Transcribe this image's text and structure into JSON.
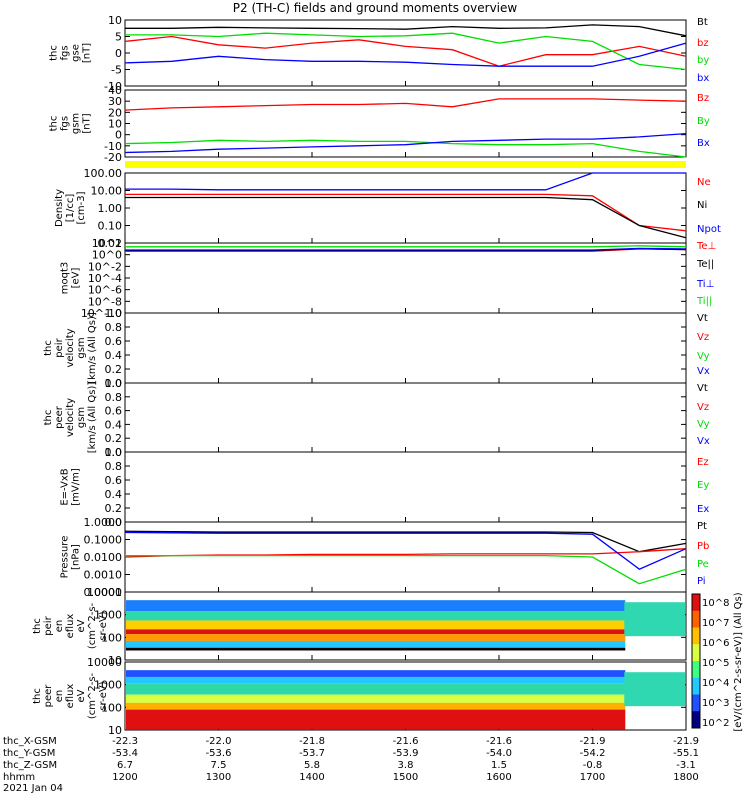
{
  "title": "P2 (TH-C) fields and ground moments overview",
  "colors": {
    "black": "#000000",
    "red": "#ff0000",
    "green": "#00dd00",
    "blue": "#0000ff",
    "yellow": "#ffff00"
  },
  "chart_data": [
    {
      "type": "line",
      "ylabel": [
        "thc",
        "fgs",
        "gse",
        "[nT]"
      ],
      "yticks": [
        "10",
        "5",
        "0",
        "-5",
        "-10"
      ],
      "ylim": [
        -10,
        10
      ],
      "series": [
        {
          "name": "Bt",
          "color": "#000000",
          "values": [
            7.5,
            7.5,
            7.8,
            7.6,
            7.5,
            7.4,
            7.2,
            8.0,
            7.5,
            7.6,
            8.5,
            8.0,
            5.2
          ]
        },
        {
          "name": "bz",
          "color": "#ff0000",
          "values": [
            3.5,
            5.0,
            2.5,
            1.5,
            3.0,
            4.0,
            2.0,
            1.0,
            -4.0,
            -0.5,
            -0.5,
            2.0,
            -1.0
          ]
        },
        {
          "name": "by",
          "color": "#00dd00",
          "values": [
            5.5,
            5.5,
            5.0,
            6.0,
            5.5,
            5.0,
            5.2,
            6.0,
            3.0,
            5.0,
            3.5,
            -3.5,
            -5.0
          ]
        },
        {
          "name": "bx",
          "color": "#0000ff",
          "values": [
            -3.0,
            -2.5,
            -1.0,
            -2.0,
            -2.5,
            -2.5,
            -2.8,
            -3.5,
            -4.0,
            -4.0,
            -4.0,
            -1.0,
            3.0
          ]
        }
      ]
    },
    {
      "type": "line",
      "ylabel": [
        "thc",
        "fgs",
        "gsm",
        "[nT]"
      ],
      "yticks": [
        "40",
        "30",
        "20",
        "10",
        "0",
        "-10",
        "-20"
      ],
      "ylim": [
        -20,
        40
      ],
      "series": [
        {
          "name": "Bz",
          "color": "#ff0000",
          "values": [
            22,
            24,
            25,
            26,
            27,
            27,
            28,
            25,
            32,
            32,
            32,
            31,
            30
          ]
        },
        {
          "name": "By",
          "color": "#00dd00",
          "values": [
            -8,
            -7,
            -5,
            -6,
            -5,
            -6,
            -6,
            -8,
            -9,
            -9,
            -8,
            -15,
            -20
          ]
        },
        {
          "name": "Bx",
          "color": "#0000ff",
          "values": [
            -16,
            -15,
            -13,
            -12,
            -11,
            -10,
            -9,
            -6,
            -5,
            -4,
            -4,
            -2,
            1
          ]
        }
      ]
    },
    {
      "type": "line",
      "ylabel": [
        "Density",
        "[1/cc]",
        "[cm-3]"
      ],
      "yticks": [
        "100.00",
        "10.00",
        "1.00",
        "0.10",
        "0.01"
      ],
      "yscale": "log",
      "ylim": [
        0.01,
        100
      ],
      "series": [
        {
          "name": "Ne",
          "color": "#ff0000",
          "values": [
            6,
            6,
            6,
            6,
            6,
            6,
            6,
            6,
            6,
            6,
            5,
            0.1,
            0.05
          ]
        },
        {
          "name": "Ni",
          "color": "#000000",
          "values": [
            4,
            4,
            4,
            4,
            4,
            4,
            4,
            4,
            4,
            4,
            3,
            0.1,
            0.02
          ]
        },
        {
          "name": "Npot",
          "color": "#0000ff",
          "values": [
            12,
            12,
            11,
            11,
            11,
            11,
            11,
            11,
            11,
            11,
            100,
            100,
            100
          ]
        }
      ]
    },
    {
      "type": "line",
      "ylabel": [
        "moqt3",
        "[eV]"
      ],
      "yticks": [
        "10^2",
        "10^0",
        "10^-2",
        "10^-4",
        "10^-6",
        "10^-8",
        "10^-10"
      ],
      "yscale": "log",
      "series": [
        {
          "name": "Te⊥",
          "color": "#ff0000",
          "values": [
            30,
            30,
            30,
            30,
            30,
            30,
            30,
            30,
            30,
            30,
            30,
            80,
            60
          ]
        },
        {
          "name": "Te||",
          "color": "#000000",
          "values": [
            40,
            40,
            40,
            40,
            40,
            40,
            40,
            40,
            40,
            40,
            40,
            90,
            60
          ]
        },
        {
          "name": "Ti⊥",
          "color": "#0000ff",
          "values": [
            50,
            50,
            50,
            50,
            50,
            50,
            50,
            50,
            50,
            50,
            50,
            100,
            80
          ]
        },
        {
          "name": "Ti||",
          "color": "#00dd00",
          "values": [
            200,
            200,
            200,
            200,
            200,
            200,
            200,
            200,
            200,
            200,
            200,
            300,
            200
          ]
        }
      ]
    },
    {
      "type": "line",
      "ylabel": [
        "thc",
        "peir",
        "velocity",
        "gsm",
        "[km/s (All Qs)]"
      ],
      "yticks": [
        "1.0",
        "0.8",
        "0.6",
        "0.4",
        "0.2",
        "0.0"
      ],
      "ylim": [
        0,
        1
      ],
      "series": [
        {
          "name": "Vt",
          "color": "#000000",
          "values": []
        },
        {
          "name": "Vz",
          "color": "#ff0000",
          "values": []
        },
        {
          "name": "Vy",
          "color": "#00dd00",
          "values": []
        },
        {
          "name": "Vx",
          "color": "#0000ff",
          "values": []
        }
      ]
    },
    {
      "type": "line",
      "ylabel": [
        "thc",
        "peer",
        "velocity",
        "gsm",
        "[km/s (All Qs)]"
      ],
      "yticks": [
        "1.0",
        "0.8",
        "0.6",
        "0.4",
        "0.2",
        "0.0"
      ],
      "ylim": [
        0,
        1
      ],
      "series": [
        {
          "name": "Vt",
          "color": "#000000",
          "values": []
        },
        {
          "name": "Vz",
          "color": "#ff0000",
          "values": []
        },
        {
          "name": "Vy",
          "color": "#00dd00",
          "values": []
        },
        {
          "name": "Vx",
          "color": "#0000ff",
          "values": []
        }
      ]
    },
    {
      "type": "line",
      "ylabel": [
        "E=-VxB",
        "[mV/m]"
      ],
      "yticks": [
        "1.0",
        "0.8",
        "0.6",
        "0.4",
        "0.2",
        "0.0"
      ],
      "ylim": [
        0,
        1
      ],
      "series": [
        {
          "name": "Ez",
          "color": "#ff0000",
          "values": []
        },
        {
          "name": "Ey",
          "color": "#00dd00",
          "values": []
        },
        {
          "name": "Ex",
          "color": "#0000ff",
          "values": []
        }
      ]
    },
    {
      "type": "line",
      "ylabel": [
        "Pressure",
        "[nPa]"
      ],
      "yticks": [
        "1.0000",
        "0.1000",
        "0.0100",
        "0.0010",
        "0.0001"
      ],
      "yscale": "log",
      "ylim": [
        0.0001,
        1
      ],
      "series": [
        {
          "name": "Pt",
          "color": "#000000",
          "values": [
            0.3,
            0.28,
            0.27,
            0.27,
            0.27,
            0.27,
            0.27,
            0.27,
            0.27,
            0.27,
            0.25,
            0.02,
            0.06
          ]
        },
        {
          "name": "Pb",
          "color": "#ff0000",
          "values": [
            0.01,
            0.012,
            0.013,
            0.013,
            0.014,
            0.014,
            0.014,
            0.015,
            0.015,
            0.015,
            0.015,
            0.02,
            0.03
          ]
        },
        {
          "name": "Pe",
          "color": "#00dd00",
          "values": [
            0.012,
            0.012,
            0.012,
            0.012,
            0.012,
            0.012,
            0.012,
            0.012,
            0.012,
            0.012,
            0.01,
            0.0003,
            0.002
          ]
        },
        {
          "name": "Pi",
          "color": "#0000ff",
          "values": [
            0.25,
            0.24,
            0.23,
            0.23,
            0.23,
            0.23,
            0.23,
            0.23,
            0.23,
            0.23,
            0.2,
            0.002,
            0.03
          ]
        }
      ]
    },
    {
      "type": "heatmap",
      "ylabel": [
        "thc",
        "peir",
        "en",
        "eflux",
        "eV",
        "(cm^2-s-",
        "sr-eV)"
      ],
      "yticks": [
        "10000",
        "1000",
        "100",
        "10"
      ],
      "yscale": "log"
    },
    {
      "type": "heatmap",
      "ylabel": [
        "thc",
        "peer",
        "en",
        "eflux",
        "eV",
        "(cm^2-s-",
        "sr-eV)"
      ],
      "yticks": [
        "10000",
        "1000",
        "100",
        "10"
      ],
      "yscale": "log"
    }
  ],
  "legends": [
    [
      "Bt",
      "bz",
      "by",
      "bx"
    ],
    [
      "Bz",
      "By",
      "Bx"
    ],
    [
      "Ne",
      "Ni",
      "Npot"
    ],
    [
      "Te⊥",
      "Te||",
      "Ti⊥",
      "Ti||"
    ],
    [
      "Vt",
      "Vz",
      "Vy",
      "Vx"
    ],
    [
      "Vt",
      "Vz",
      "Vy",
      "Vx"
    ],
    [
      "Ez",
      "Ey",
      "Ex"
    ],
    [
      "Pt",
      "Pb",
      "Pe",
      "Pi"
    ]
  ],
  "colorbar": {
    "ticks": [
      "10^8",
      "10^7",
      "10^6",
      "10^5",
      "10^4",
      "10^3",
      "10^2"
    ],
    "label": "[eV/(cm^2-s-sr-eV)] (All Qs)"
  },
  "axis_rows": {
    "labels": [
      "thc_X-GSM",
      "thc_Y-GSM",
      "thc_Z-GSM",
      "hhmm",
      "2021 Jan 04"
    ],
    "x_gsm": [
      "-22.3",
      "-22.0",
      "-21.8",
      "-21.6",
      "-21.6",
      "-21.9",
      "-21.9"
    ],
    "y_gsm": [
      "-53.4",
      "-53.6",
      "-53.7",
      "-53.9",
      "-54.0",
      "-54.2",
      "-55.1"
    ],
    "z_gsm": [
      "6.7",
      "7.5",
      "5.8",
      "3.8",
      "1.5",
      "-0.8",
      "-3.1"
    ],
    "hhmm": [
      "1200",
      "1300",
      "1400",
      "1500",
      "1600",
      "1700",
      "1800"
    ]
  }
}
